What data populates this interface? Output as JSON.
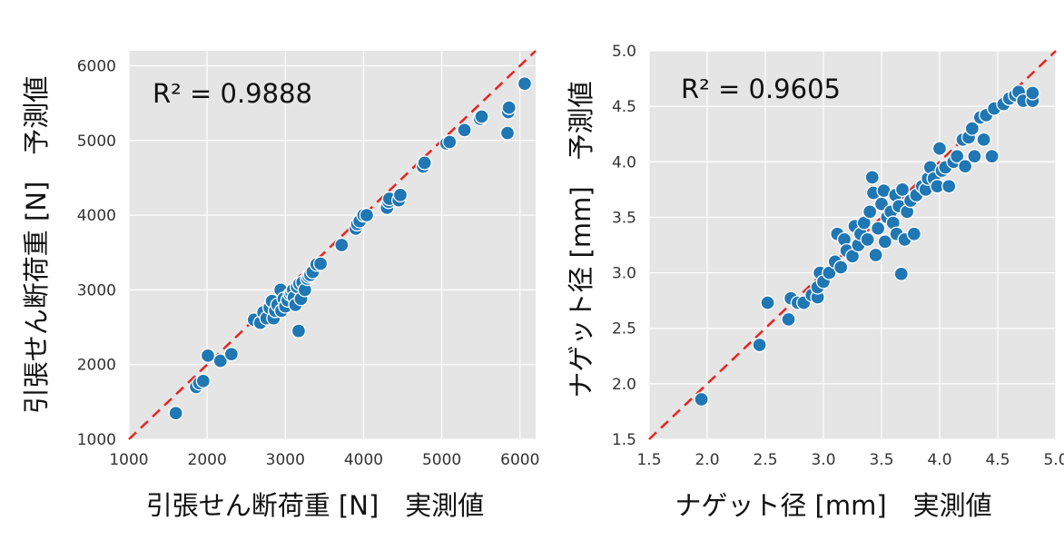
{
  "chart_data": [
    {
      "type": "scatter",
      "xlabel": "引張せん断荷重 [N]　実測値",
      "ylabel": "引張せん断荷重 [N]　予測値",
      "annotation": "R² = 0.9888",
      "xlim": [
        1000,
        6200
      ],
      "ylim": [
        1000,
        6200
      ],
      "xticks": [
        1000,
        2000,
        3000,
        4000,
        5000,
        6000
      ],
      "yticks": [
        1000,
        2000,
        3000,
        4000,
        5000,
        6000
      ],
      "xtick_labels": [
        "1000",
        "2000",
        "3000",
        "4000",
        "5000",
        "6000"
      ],
      "ytick_labels": [
        "1000",
        "2000",
        "3000",
        "4000",
        "5000",
        "6000"
      ],
      "grid": true,
      "reference_line": "y = x",
      "colors": {
        "marker": "#1f77b4",
        "marker_edge": "#ffffff",
        "reference_line": "#e8231f",
        "plot_bg": "#e5e5e5",
        "grid": "#ffffff"
      },
      "points": [
        [
          1600,
          1350
        ],
        [
          1860,
          1700
        ],
        [
          1900,
          1750
        ],
        [
          1950,
          1780
        ],
        [
          2010,
          2120
        ],
        [
          2170,
          2050
        ],
        [
          2310,
          2140
        ],
        [
          2600,
          2600
        ],
        [
          2680,
          2560
        ],
        [
          2720,
          2700
        ],
        [
          2760,
          2620
        ],
        [
          2800,
          2760
        ],
        [
          2830,
          2850
        ],
        [
          2850,
          2620
        ],
        [
          2870,
          2720
        ],
        [
          2900,
          2800
        ],
        [
          2940,
          3000
        ],
        [
          2950,
          2720
        ],
        [
          2980,
          2880
        ],
        [
          3000,
          2780
        ],
        [
          3030,
          2860
        ],
        [
          3060,
          2940
        ],
        [
          3080,
          2960
        ],
        [
          3100,
          3000
        ],
        [
          3110,
          2900
        ],
        [
          3130,
          2800
        ],
        [
          3150,
          3040
        ],
        [
          3170,
          2450
        ],
        [
          3180,
          3080
        ],
        [
          3200,
          2880
        ],
        [
          3220,
          3100
        ],
        [
          3250,
          3000
        ],
        [
          3280,
          3150
        ],
        [
          3300,
          3180
        ],
        [
          3320,
          3200
        ],
        [
          3350,
          3240
        ],
        [
          3400,
          3340
        ],
        [
          3450,
          3350
        ],
        [
          3720,
          3600
        ],
        [
          3900,
          3820
        ],
        [
          3920,
          3880
        ],
        [
          3950,
          3920
        ],
        [
          4000,
          4000
        ],
        [
          4040,
          4000
        ],
        [
          4300,
          4100
        ],
        [
          4320,
          4180
        ],
        [
          4330,
          4220
        ],
        [
          4450,
          4200
        ],
        [
          4470,
          4270
        ],
        [
          4760,
          4650
        ],
        [
          4780,
          4700
        ],
        [
          5060,
          4960
        ],
        [
          5100,
          4980
        ],
        [
          5290,
          5140
        ],
        [
          5490,
          5290
        ],
        [
          5510,
          5320
        ],
        [
          5840,
          5100
        ],
        [
          5850,
          5380
        ],
        [
          5860,
          5440
        ],
        [
          6060,
          5760
        ]
      ]
    },
    {
      "type": "scatter",
      "xlabel": "ナゲット径 [mm]　実測値",
      "ylabel": "ナゲット径 [mm]　予測値",
      "annotation": "R² = 0.9605",
      "xlim": [
        1.5,
        5.0
      ],
      "ylim": [
        1.5,
        5.0
      ],
      "xticks": [
        1.5,
        2.0,
        2.5,
        3.0,
        3.5,
        4.0,
        4.5,
        5.0
      ],
      "yticks": [
        1.5,
        2.0,
        2.5,
        3.0,
        3.5,
        4.0,
        4.5,
        5.0
      ],
      "xtick_labels": [
        "1.5",
        "2.0",
        "2.5",
        "3.0",
        "3.5",
        "4.0",
        "4.5",
        "5.0"
      ],
      "ytick_labels": [
        "1.5",
        "2.0",
        "2.5",
        "3.0",
        "3.5",
        "4.0",
        "4.5",
        "5.0"
      ],
      "grid": true,
      "reference_line": "y = x",
      "colors": {
        "marker": "#1f77b4",
        "marker_edge": "#ffffff",
        "reference_line": "#e8231f",
        "plot_bg": "#e5e5e5",
        "grid": "#ffffff"
      },
      "points": [
        [
          1.95,
          1.86
        ],
        [
          2.45,
          2.35
        ],
        [
          2.52,
          2.73
        ],
        [
          2.7,
          2.58
        ],
        [
          2.72,
          2.77
        ],
        [
          2.78,
          2.73
        ],
        [
          2.83,
          2.73
        ],
        [
          2.9,
          2.8
        ],
        [
          2.95,
          2.78
        ],
        [
          2.95,
          2.87
        ],
        [
          2.97,
          3.0
        ],
        [
          3.0,
          2.92
        ],
        [
          3.05,
          3.0
        ],
        [
          3.1,
          3.1
        ],
        [
          3.12,
          3.35
        ],
        [
          3.15,
          3.05
        ],
        [
          3.18,
          3.3
        ],
        [
          3.2,
          3.2
        ],
        [
          3.25,
          3.15
        ],
        [
          3.27,
          3.42
        ],
        [
          3.3,
          3.25
        ],
        [
          3.32,
          3.35
        ],
        [
          3.35,
          3.45
        ],
        [
          3.38,
          3.3
        ],
        [
          3.4,
          3.55
        ],
        [
          3.42,
          3.86
        ],
        [
          3.43,
          3.72
        ],
        [
          3.45,
          3.16
        ],
        [
          3.47,
          3.4
        ],
        [
          3.5,
          3.62
        ],
        [
          3.52,
          3.74
        ],
        [
          3.53,
          3.28
        ],
        [
          3.55,
          3.5
        ],
        [
          3.58,
          3.55
        ],
        [
          3.6,
          3.45
        ],
        [
          3.62,
          3.7
        ],
        [
          3.63,
          3.35
        ],
        [
          3.65,
          3.6
        ],
        [
          3.67,
          2.99
        ],
        [
          3.68,
          3.75
        ],
        [
          3.7,
          3.3
        ],
        [
          3.72,
          3.55
        ],
        [
          3.75,
          3.65
        ],
        [
          3.78,
          3.35
        ],
        [
          3.8,
          3.7
        ],
        [
          3.85,
          3.78
        ],
        [
          3.88,
          3.75
        ],
        [
          3.9,
          3.85
        ],
        [
          3.92,
          3.95
        ],
        [
          3.95,
          3.85
        ],
        [
          3.98,
          3.78
        ],
        [
          4.0,
          4.12
        ],
        [
          4.02,
          3.92
        ],
        [
          4.05,
          3.95
        ],
        [
          4.08,
          3.78
        ],
        [
          4.12,
          4.0
        ],
        [
          4.15,
          4.05
        ],
        [
          4.2,
          4.2
        ],
        [
          4.22,
          3.96
        ],
        [
          4.25,
          4.22
        ],
        [
          4.28,
          4.3
        ],
        [
          4.3,
          4.05
        ],
        [
          4.35,
          4.4
        ],
        [
          4.38,
          4.2
        ],
        [
          4.4,
          4.42
        ],
        [
          4.45,
          4.05
        ],
        [
          4.47,
          4.48
        ],
        [
          4.55,
          4.52
        ],
        [
          4.6,
          4.57
        ],
        [
          4.65,
          4.6
        ],
        [
          4.68,
          4.63
        ],
        [
          4.72,
          4.55
        ],
        [
          4.8,
          4.55
        ],
        [
          4.8,
          4.62
        ]
      ]
    }
  ]
}
